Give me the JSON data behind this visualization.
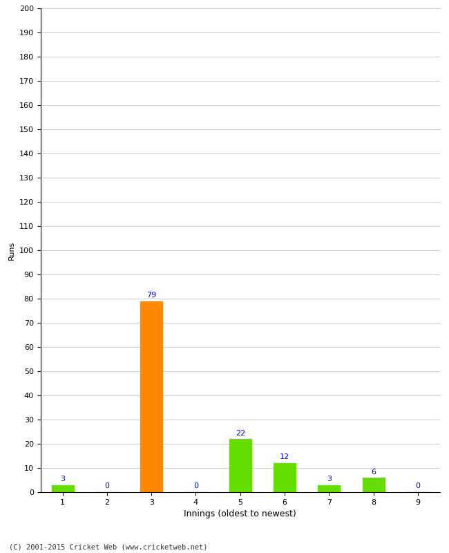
{
  "innings": [
    1,
    2,
    3,
    4,
    5,
    6,
    7,
    8,
    9
  ],
  "values": [
    3,
    0,
    79,
    0,
    22,
    12,
    3,
    6,
    0
  ],
  "bar_colors": [
    "#66dd00",
    "#66dd00",
    "#ff8800",
    "#66dd00",
    "#66dd00",
    "#66dd00",
    "#66dd00",
    "#66dd00",
    "#66dd00"
  ],
  "xlabel": "Innings (oldest to newest)",
  "ylabel": "Runs",
  "ylim": [
    0,
    200
  ],
  "yticks": [
    0,
    10,
    20,
    30,
    40,
    50,
    60,
    70,
    80,
    90,
    100,
    110,
    120,
    130,
    140,
    150,
    160,
    170,
    180,
    190,
    200
  ],
  "label_color": "#0000cc",
  "label_fontsize": 8,
  "axis_tick_fontsize": 8,
  "xlabel_fontsize": 9,
  "ylabel_fontsize": 8,
  "footer_text": "(C) 2001-2015 Cricket Web (www.cricketweb.net)",
  "footer_fontsize": 7.5,
  "background_color": "#ffffff",
  "grid_color": "#cccccc",
  "bar_width": 0.5
}
